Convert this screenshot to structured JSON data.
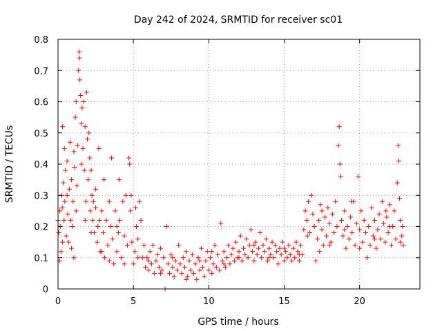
{
  "chart_data": {
    "type": "scatter",
    "title": "Day 242 of 2024, SRMTID for receiver sc01",
    "xlabel": "GPS time / hours",
    "ylabel": "SRMTID / TECUs",
    "xlim": [
      0,
      24
    ],
    "ylim": [
      0,
      0.8
    ],
    "xticks": [
      0,
      5,
      10,
      15,
      20
    ],
    "xtick_labels": [
      "0",
      "5",
      "10",
      "15",
      "20"
    ],
    "yticks": [
      0,
      0.1,
      0.2,
      0.3,
      0.4,
      0.5,
      0.6,
      0.7,
      0.8
    ],
    "ytick_labels": [
      "0",
      "0.1",
      "0.2",
      "0.3",
      "0.4",
      "0.5",
      "0.6",
      "0.7",
      "0.8"
    ],
    "grid": true,
    "marker": "+",
    "color": "#ff0000",
    "series": [
      {
        "name": "sc01",
        "points": [
          [
            0.0,
            0.22
          ],
          [
            0.05,
            0.18
          ],
          [
            0.1,
            0.09
          ],
          [
            0.12,
            0.25
          ],
          [
            0.15,
            0.2
          ],
          [
            0.2,
            0.12
          ],
          [
            0.25,
            0.3
          ],
          [
            0.28,
            0.26
          ],
          [
            0.3,
            0.52
          ],
          [
            0.35,
            0.34
          ],
          [
            0.4,
            0.22
          ],
          [
            0.42,
            0.45
          ],
          [
            0.45,
            0.28
          ],
          [
            0.5,
            0.38
          ],
          [
            0.55,
            0.17
          ],
          [
            0.6,
            0.41
          ],
          [
            0.65,
            0.24
          ],
          [
            0.7,
            0.15
          ],
          [
            0.75,
            0.32
          ],
          [
            0.8,
            0.47
          ],
          [
            0.85,
            0.22
          ],
          [
            0.9,
            0.35
          ],
          [
            0.95,
            0.2
          ],
          [
            1.0,
            0.28
          ],
          [
            1.05,
            0.44
          ],
          [
            1.1,
            0.39
          ],
          [
            1.15,
            0.55
          ],
          [
            1.2,
            0.6
          ],
          [
            1.25,
            0.33
          ],
          [
            1.3,
            0.46
          ],
          [
            1.35,
            0.7
          ],
          [
            1.4,
            0.76
          ],
          [
            1.42,
            0.74
          ],
          [
            1.45,
            0.67
          ],
          [
            1.5,
            0.62
          ],
          [
            1.55,
            0.53
          ],
          [
            1.6,
            0.58
          ],
          [
            1.65,
            0.45
          ],
          [
            1.7,
            0.6
          ],
          [
            1.75,
            0.38
          ],
          [
            1.8,
            0.52
          ],
          [
            1.85,
            0.28
          ],
          [
            1.9,
            0.63
          ],
          [
            1.95,
            0.48
          ],
          [
            2.0,
            0.35
          ],
          [
            2.05,
            0.5
          ],
          [
            2.1,
            0.42
          ],
          [
            2.15,
            0.25
          ],
          [
            2.2,
            0.38
          ],
          [
            2.25,
            0.3
          ],
          [
            2.3,
            0.22
          ],
          [
            2.35,
            0.28
          ],
          [
            2.4,
            0.18
          ],
          [
            2.5,
            0.32
          ],
          [
            2.6,
            0.15
          ],
          [
            2.7,
            0.45
          ],
          [
            2.75,
            0.22
          ],
          [
            2.8,
            0.12
          ],
          [
            2.9,
            0.25
          ],
          [
            3.0,
            0.18
          ],
          [
            3.05,
            0.35
          ],
          [
            3.1,
            0.1
          ],
          [
            3.2,
            0.22
          ],
          [
            3.3,
            0.14
          ],
          [
            3.4,
            0.28
          ],
          [
            3.5,
            0.2
          ],
          [
            3.55,
            0.42
          ],
          [
            3.6,
            0.16
          ],
          [
            3.7,
            0.08
          ],
          [
            3.8,
            0.25
          ],
          [
            3.9,
            0.12
          ],
          [
            4.0,
            0.18
          ],
          [
            4.05,
            0.35
          ],
          [
            4.1,
            0.22
          ],
          [
            4.2,
            0.1
          ],
          [
            4.3,
            0.28
          ],
          [
            4.4,
            0.17
          ],
          [
            4.5,
            0.3
          ],
          [
            4.6,
            0.14
          ],
          [
            4.7,
            0.42
          ],
          [
            4.75,
            0.4
          ],
          [
            4.8,
            0.25
          ],
          [
            4.9,
            0.15
          ],
          [
            5.0,
            0.08
          ],
          [
            5.1,
            0.12
          ],
          [
            5.2,
            0.2
          ],
          [
            5.3,
            0.16
          ],
          [
            5.4,
            0.28
          ],
          [
            5.5,
            0.22
          ],
          [
            5.6,
            0.1
          ],
          [
            5.7,
            0.14
          ],
          [
            5.8,
            0.07
          ],
          [
            5.9,
            0.1
          ],
          [
            6.0,
            0.06
          ],
          [
            6.1,
            0.12
          ],
          [
            6.2,
            0.08
          ],
          [
            6.3,
            0.14
          ],
          [
            6.4,
            0.05
          ],
          [
            6.5,
            0.09
          ],
          [
            6.6,
            0.11
          ],
          [
            6.7,
            0.07
          ],
          [
            6.8,
            0.13
          ],
          [
            6.9,
            0.06
          ],
          [
            7.0,
            0.1
          ],
          [
            7.1,
            0.0
          ],
          [
            7.2,
            0.2
          ],
          [
            7.3,
            0.08
          ],
          [
            7.4,
            0.05
          ],
          [
            7.5,
            0.11
          ],
          [
            7.6,
            0.07
          ],
          [
            7.7,
            0.04
          ],
          [
            7.8,
            0.09
          ],
          [
            7.9,
            0.06
          ],
          [
            8.0,
            0.14
          ],
          [
            8.1,
            0.08
          ],
          [
            8.2,
            0.05
          ],
          [
            8.3,
            0.1
          ],
          [
            8.4,
            0.07
          ],
          [
            8.5,
            0.12
          ],
          [
            8.6,
            0.04
          ],
          [
            8.7,
            0.09
          ],
          [
            8.8,
            0.06
          ],
          [
            8.9,
            0.11
          ],
          [
            9.0,
            0.05
          ],
          [
            9.1,
            0.08
          ],
          [
            9.2,
            0.03
          ],
          [
            9.3,
            0.1
          ],
          [
            9.4,
            0.06
          ],
          [
            9.5,
            0.13
          ],
          [
            9.6,
            0.07
          ],
          [
            9.7,
            0.04
          ],
          [
            9.8,
            0.09
          ],
          [
            9.9,
            0.12
          ],
          [
            10.0,
            0.06
          ],
          [
            10.1,
            0.1
          ],
          [
            10.2,
            0.05
          ],
          [
            10.3,
            0.08
          ],
          [
            10.4,
            0.14
          ],
          [
            10.5,
            0.07
          ],
          [
            10.6,
            0.11
          ],
          [
            10.7,
            0.06
          ],
          [
            10.8,
            0.21
          ],
          [
            10.9,
            0.09
          ],
          [
            11.0,
            0.12
          ],
          [
            11.1,
            0.07
          ],
          [
            11.2,
            0.1
          ],
          [
            11.3,
            0.14
          ],
          [
            11.4,
            0.08
          ],
          [
            11.5,
            0.11
          ],
          [
            11.6,
            0.13
          ],
          [
            11.7,
            0.09
          ],
          [
            11.8,
            0.15
          ],
          [
            11.9,
            0.1
          ],
          [
            12.0,
            0.12
          ],
          [
            12.1,
            0.17
          ],
          [
            12.2,
            0.09
          ],
          [
            12.3,
            0.13
          ],
          [
            12.4,
            0.11
          ],
          [
            12.5,
            0.16
          ],
          [
            12.6,
            0.1
          ],
          [
            12.7,
            0.14
          ],
          [
            12.8,
            0.19
          ],
          [
            12.9,
            0.12
          ],
          [
            13.0,
            0.09
          ],
          [
            13.1,
            0.15
          ],
          [
            13.2,
            0.11
          ],
          [
            13.3,
            0.13
          ],
          [
            13.4,
            0.18
          ],
          [
            13.5,
            0.1
          ],
          [
            13.6,
            0.14
          ],
          [
            13.7,
            0.12
          ],
          [
            13.8,
            0.16
          ],
          [
            13.9,
            0.09
          ],
          [
            14.0,
            0.13
          ],
          [
            14.1,
            0.11
          ],
          [
            14.2,
            0.15
          ],
          [
            14.3,
            0.1
          ],
          [
            14.4,
            0.14
          ],
          [
            14.5,
            0.12
          ],
          [
            14.6,
            0.08
          ],
          [
            14.7,
            0.13
          ],
          [
            14.8,
            0.11
          ],
          [
            14.9,
            0.15
          ],
          [
            15.0,
            0.09
          ],
          [
            15.1,
            0.12
          ],
          [
            15.2,
            0.1
          ],
          [
            15.3,
            0.14
          ],
          [
            15.4,
            0.11
          ],
          [
            15.5,
            0.09
          ],
          [
            15.6,
            0.13
          ],
          [
            15.7,
            0.1
          ],
          [
            15.8,
            0.15
          ],
          [
            15.9,
            0.12
          ],
          [
            16.0,
            0.09
          ],
          [
            16.1,
            0.14
          ],
          [
            16.2,
            0.11
          ],
          [
            16.3,
            0.19
          ],
          [
            16.4,
            0.25
          ],
          [
            16.5,
            0.22
          ],
          [
            16.6,
            0.28
          ],
          [
            16.7,
            0.18
          ],
          [
            16.8,
            0.3
          ],
          [
            16.9,
            0.24
          ],
          [
            17.0,
            0.2
          ],
          [
            17.1,
            0.09
          ],
          [
            17.2,
            0.16
          ],
          [
            17.3,
            0.22
          ],
          [
            17.4,
            0.27
          ],
          [
            17.5,
            0.19
          ],
          [
            17.6,
            0.14
          ],
          [
            17.7,
            0.23
          ],
          [
            17.8,
            0.17
          ],
          [
            17.9,
            0.26
          ],
          [
            18.0,
            0.21
          ],
          [
            18.1,
            0.15
          ],
          [
            18.2,
            0.24
          ],
          [
            18.3,
            0.18
          ],
          [
            18.4,
            0.28
          ],
          [
            18.5,
            0.2
          ],
          [
            18.6,
            0.46
          ],
          [
            18.65,
            0.52
          ],
          [
            18.7,
            0.4
          ],
          [
            18.75,
            0.36
          ],
          [
            18.8,
            0.22
          ],
          [
            18.9,
            0.17
          ],
          [
            19.0,
            0.25
          ],
          [
            19.1,
            0.13
          ],
          [
            19.2,
            0.2
          ],
          [
            19.3,
            0.16
          ],
          [
            19.4,
            0.23
          ],
          [
            19.5,
            0.18
          ],
          [
            19.6,
            0.28
          ],
          [
            19.7,
            0.14
          ],
          [
            19.8,
            0.21
          ],
          [
            19.9,
            0.36
          ],
          [
            20.0,
            0.19
          ],
          [
            20.1,
            0.25
          ],
          [
            20.2,
            0.15
          ],
          [
            20.3,
            0.22
          ],
          [
            20.4,
            0.18
          ],
          [
            20.5,
            0.1
          ],
          [
            20.6,
            0.2
          ],
          [
            20.7,
            0.14
          ],
          [
            20.8,
            0.26
          ],
          [
            20.9,
            0.17
          ],
          [
            21.0,
            0.22
          ],
          [
            21.1,
            0.13
          ],
          [
            21.2,
            0.19
          ],
          [
            21.3,
            0.24
          ],
          [
            21.4,
            0.16
          ],
          [
            21.5,
            0.28
          ],
          [
            21.6,
            0.21
          ],
          [
            21.7,
            0.15
          ],
          [
            21.8,
            0.23
          ],
          [
            21.9,
            0.18
          ],
          [
            22.0,
            0.27
          ],
          [
            22.1,
            0.14
          ],
          [
            22.2,
            0.2
          ],
          [
            22.3,
            0.25
          ],
          [
            22.4,
            0.16
          ],
          [
            22.5,
            0.34
          ],
          [
            22.55,
            0.46
          ],
          [
            22.6,
            0.41
          ],
          [
            22.65,
            0.29
          ],
          [
            22.7,
            0.22
          ],
          [
            22.8,
            0.17
          ],
          [
            22.85,
            0.2
          ],
          [
            22.9,
            0.14
          ],
          [
            0.3,
            0.15
          ],
          [
            0.6,
            0.3
          ],
          [
            0.9,
            0.13
          ],
          [
            1.2,
            0.25
          ],
          [
            1.55,
            0.4
          ],
          [
            1.8,
            0.22
          ],
          [
            2.2,
            0.18
          ],
          [
            2.5,
            0.26
          ],
          [
            2.9,
            0.12
          ],
          [
            3.4,
            0.09
          ],
          [
            3.9,
            0.2
          ],
          [
            4.4,
            0.08
          ],
          [
            4.85,
            0.3
          ],
          [
            5.3,
            0.1
          ],
          [
            6.0,
            0.09
          ],
          [
            6.8,
            0.05
          ],
          [
            7.6,
            0.1
          ],
          [
            8.5,
            0.03
          ],
          [
            9.4,
            0.09
          ],
          [
            10.2,
            0.12
          ],
          [
            11.0,
            0.08
          ],
          [
            12.0,
            0.1
          ],
          [
            13.0,
            0.14
          ],
          [
            14.0,
            0.1
          ],
          [
            15.0,
            0.13
          ],
          [
            16.0,
            0.11
          ],
          [
            17.5,
            0.25
          ],
          [
            18.0,
            0.14
          ],
          [
            19.0,
            0.19
          ],
          [
            20.0,
            0.13
          ],
          [
            21.0,
            0.16
          ],
          [
            22.0,
            0.2
          ],
          [
            22.7,
            0.15
          ],
          [
            5.15,
            0.26
          ],
          [
            16.55,
            0.17
          ],
          [
            17.35,
            0.12
          ],
          [
            19.45,
            0.28
          ],
          [
            21.75,
            0.25
          ],
          [
            1.05,
            0.1
          ],
          [
            2.65,
            0.2
          ]
        ]
      }
    ]
  }
}
